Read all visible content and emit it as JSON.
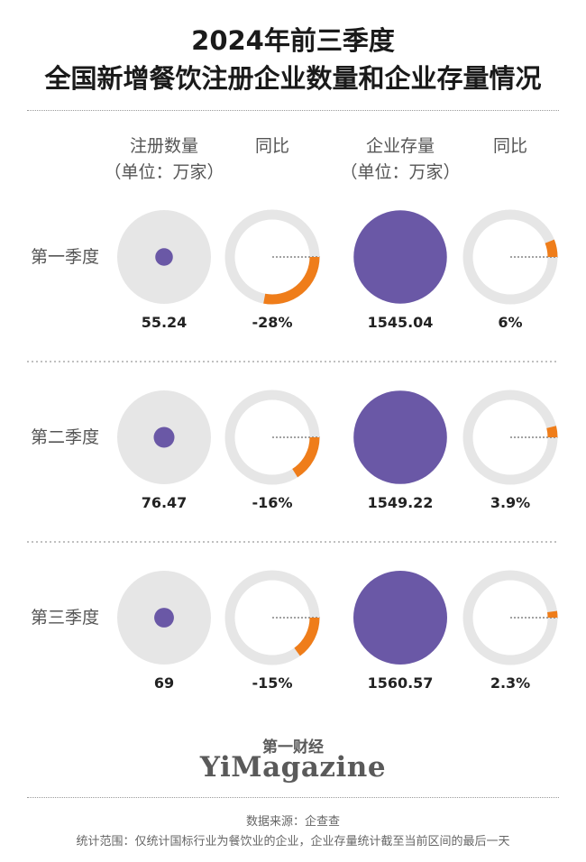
{
  "title": {
    "line1": "2024年前三季度",
    "line2": "全国新增餐饮注册企业数量和企业存量情况"
  },
  "columns": {
    "registered": {
      "line1": "注册数量",
      "line2": "（单位：万家）"
    },
    "registered_yoy": {
      "line1": "同比"
    },
    "stock": {
      "line1": "企业存量",
      "line2": "（单位：万家）"
    },
    "stock_yoy": {
      "line1": "同比"
    }
  },
  "colors": {
    "purple": "#6a58a6",
    "orange": "#ef7d1a",
    "gray_disc": "#e6e6e6",
    "gray_ring": "#e6e6e6"
  },
  "chart_data": {
    "type": "bubble-and-donut",
    "categories": [
      "第一季度",
      "第二季度",
      "第三季度"
    ],
    "series": [
      {
        "name": "注册数量（单位：万家）",
        "values": [
          55.24,
          76.47,
          69
        ],
        "labels": [
          "55.24",
          "76.47",
          "69"
        ]
      },
      {
        "name": "同比",
        "values": [
          -28,
          -16,
          -15
        ],
        "unit": "%",
        "labels": [
          "-28%",
          "-16%",
          "-15%"
        ]
      },
      {
        "name": "企业存量（单位：万家）",
        "values": [
          1545.04,
          1549.22,
          1560.57
        ],
        "labels": [
          "1545.04",
          "1549.22",
          "1560.57"
        ]
      },
      {
        "name": "同比",
        "values": [
          6,
          3.9,
          2.3
        ],
        "unit": "%",
        "labels": [
          "6%",
          "3.9%",
          "2.3%"
        ]
      }
    ]
  },
  "brand": {
    "cn": "第一财经",
    "en": "YiMagazine"
  },
  "footer": {
    "source": "数据来源：企查查",
    "scope": "统计范围：仅统计国标行业为餐饮业的企业，企业存量统计截至当前区间的最后一天"
  }
}
